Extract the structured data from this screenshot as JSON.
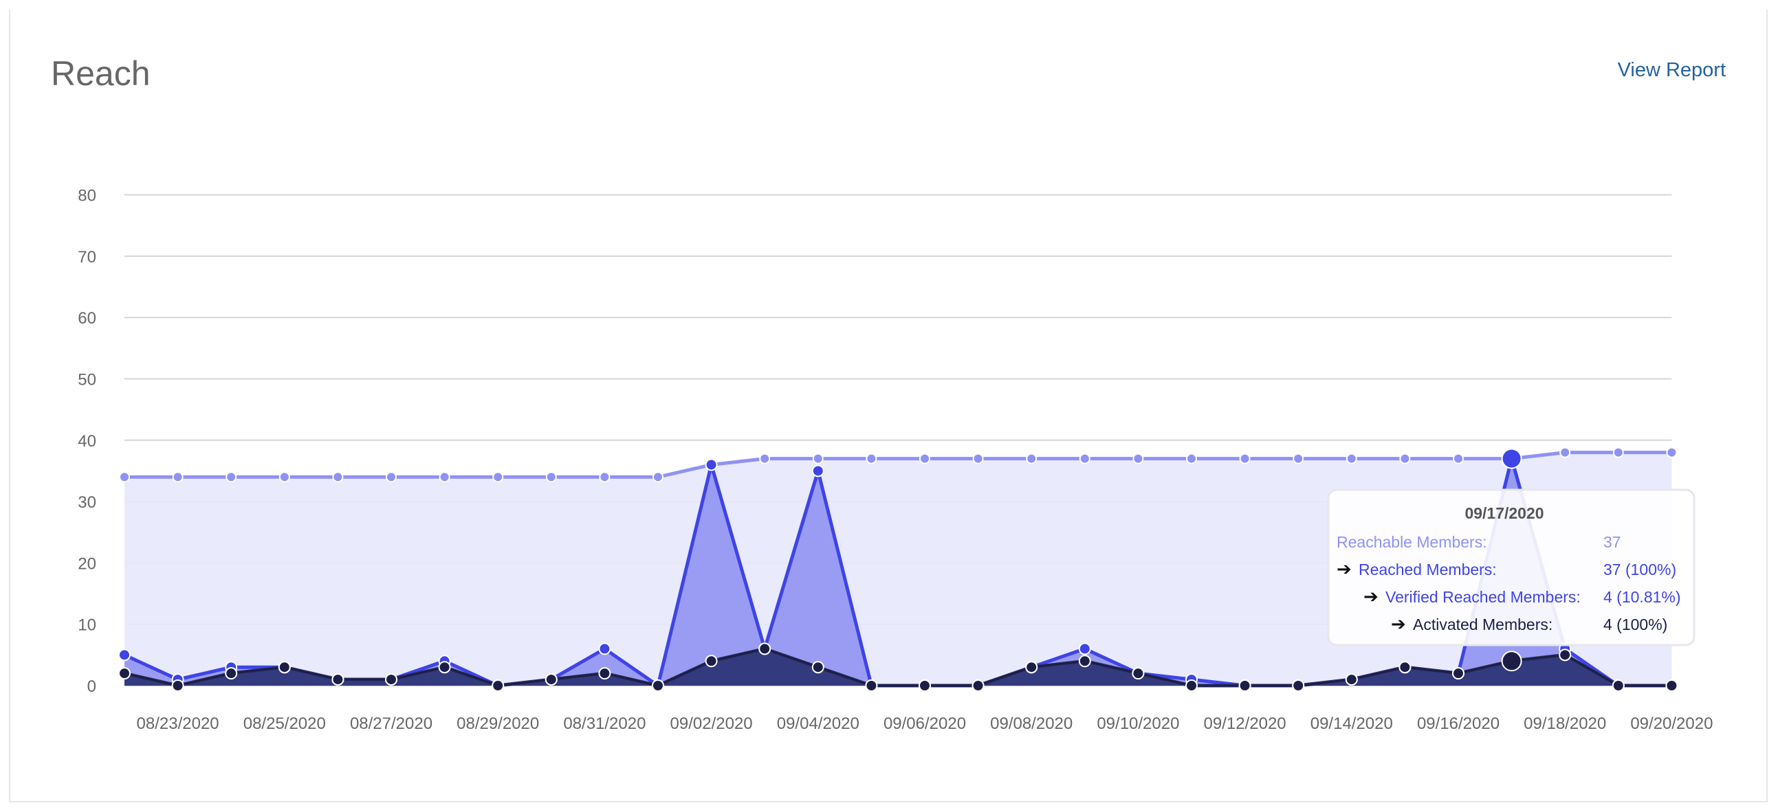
{
  "header": {
    "title": "Reach",
    "view_report_label": "View Report"
  },
  "colors": {
    "top_bar": "#2b6cb0",
    "reachable": "#8f92f3",
    "reachable_fill": "#e7e8fb",
    "reached": "#3f44e6",
    "reached_fill": "#9a9cf3",
    "verified": "#2c3169",
    "verified_fill": "#343a7e",
    "activated": "#1c1f45",
    "grid": "#d6d6d6",
    "tick_label": "#666666"
  },
  "chart_data": {
    "type": "area",
    "x": [
      "08/22/2020",
      "08/23/2020",
      "08/24/2020",
      "08/25/2020",
      "08/26/2020",
      "08/27/2020",
      "08/28/2020",
      "08/29/2020",
      "08/30/2020",
      "08/31/2020",
      "09/01/2020",
      "09/02/2020",
      "09/03/2020",
      "09/04/2020",
      "09/05/2020",
      "09/06/2020",
      "09/07/2020",
      "09/08/2020",
      "09/09/2020",
      "09/10/2020",
      "09/11/2020",
      "09/12/2020",
      "09/13/2020",
      "09/14/2020",
      "09/15/2020",
      "09/16/2020",
      "09/17/2020",
      "09/18/2020",
      "09/19/2020",
      "09/20/2020"
    ],
    "x_tick_labels": [
      "08/23/2020",
      "08/25/2020",
      "08/27/2020",
      "08/29/2020",
      "08/31/2020",
      "09/02/2020",
      "09/04/2020",
      "09/06/2020",
      "09/08/2020",
      "09/10/2020",
      "09/12/2020",
      "09/14/2020",
      "09/16/2020",
      "09/18/2020",
      "09/20/2020"
    ],
    "y_ticks": [
      0,
      10,
      20,
      30,
      40,
      50,
      60,
      70,
      80
    ],
    "ylim": [
      0,
      80
    ],
    "grid": true,
    "series": [
      {
        "name": "Reachable Members",
        "values": [
          34,
          34,
          34,
          34,
          34,
          34,
          34,
          34,
          34,
          34,
          34,
          36,
          37,
          37,
          37,
          37,
          37,
          37,
          37,
          37,
          37,
          37,
          37,
          37,
          37,
          37,
          37,
          38,
          38,
          38
        ]
      },
      {
        "name": "Reached Members",
        "values": [
          5,
          1,
          3,
          3,
          1,
          1,
          4,
          0,
          1,
          6,
          0,
          36,
          6,
          35,
          0,
          0,
          0,
          3,
          6,
          2,
          1,
          0,
          0,
          1,
          3,
          2,
          37,
          6,
          0,
          0
        ]
      },
      {
        "name": "Verified Reached Members",
        "values": [
          2,
          0,
          2,
          3,
          1,
          1,
          3,
          0,
          1,
          2,
          0,
          4,
          6,
          3,
          0,
          0,
          0,
          3,
          4,
          2,
          0,
          0,
          0,
          1,
          3,
          2,
          4,
          5,
          0,
          0
        ]
      },
      {
        "name": "Activated Members",
        "values": [
          2,
          0,
          2,
          3,
          1,
          1,
          3,
          0,
          1,
          2,
          0,
          4,
          6,
          3,
          0,
          0,
          0,
          3,
          4,
          2,
          0,
          0,
          0,
          1,
          3,
          2,
          4,
          5,
          0,
          0
        ]
      }
    ],
    "highlight_index": 26,
    "tooltip": {
      "date": "09/17/2020",
      "rows": [
        {
          "label": "Reachable Members:",
          "value": "37",
          "arrow": false
        },
        {
          "label": "Reached Members:",
          "value": "37 (100%)",
          "arrow": true
        },
        {
          "label": "Verified Reached Members:",
          "value": "4 (10.81%)",
          "arrow": true
        },
        {
          "label": "Activated Members:",
          "value": "4 (100%)",
          "arrow": true
        }
      ]
    }
  }
}
